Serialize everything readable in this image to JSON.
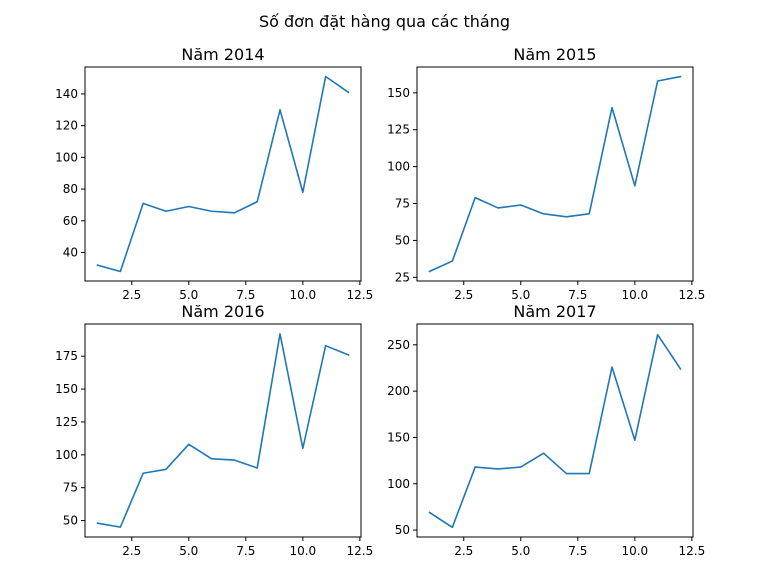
{
  "figure": {
    "suptitle": "Số đơn đặt hàng qua các tháng"
  },
  "style": {
    "line_color": "#1f77b4",
    "axes_color": "#000000",
    "background": "#ffffff"
  },
  "chart_data": [
    {
      "type": "line",
      "title": "Năm 2014",
      "xlabel": "",
      "ylabel": "",
      "grid": false,
      "xlim": [
        0.45,
        12.55
      ],
      "ylim": [
        22,
        157
      ],
      "xticks": [
        2.5,
        5.0,
        7.5,
        10.0,
        12.5
      ],
      "xtick_labels": [
        "2.5",
        "5.0",
        "7.5",
        "10.0",
        "12.5"
      ],
      "yticks": [
        40,
        60,
        80,
        100,
        120,
        140
      ],
      "ytick_labels": [
        "40",
        "60",
        "80",
        "100",
        "120",
        "140"
      ],
      "x": [
        1,
        2,
        3,
        4,
        5,
        6,
        7,
        8,
        9,
        10,
        11,
        12
      ],
      "series": [
        {
          "values": [
            32,
            28,
            71,
            66,
            69,
            66,
            65,
            72,
            130,
            78,
            151,
            141
          ]
        }
      ]
    },
    {
      "type": "line",
      "title": "Năm 2015",
      "xlabel": "",
      "ylabel": "",
      "grid": false,
      "xlim": [
        0.45,
        12.55
      ],
      "ylim": [
        22.5,
        167.5
      ],
      "xticks": [
        2.5,
        5.0,
        7.5,
        10.0,
        12.5
      ],
      "xtick_labels": [
        "2.5",
        "5.0",
        "7.5",
        "10.0",
        "12.5"
      ],
      "yticks": [
        25,
        50,
        75,
        100,
        125,
        150
      ],
      "ytick_labels": [
        "25",
        "50",
        "75",
        "100",
        "125",
        "150"
      ],
      "x": [
        1,
        2,
        3,
        4,
        5,
        6,
        7,
        8,
        9,
        10,
        11,
        12
      ],
      "series": [
        {
          "values": [
            29,
            36,
            79,
            72,
            74,
            68,
            66,
            68,
            140,
            87,
            158,
            161
          ]
        }
      ]
    },
    {
      "type": "line",
      "title": "Năm 2016",
      "xlabel": "",
      "ylabel": "",
      "grid": false,
      "xlim": [
        0.45,
        12.55
      ],
      "ylim": [
        37.5,
        199.5
      ],
      "xticks": [
        2.5,
        5.0,
        7.5,
        10.0,
        12.5
      ],
      "xtick_labels": [
        "2.5",
        "5.0",
        "7.5",
        "10.0",
        "12.5"
      ],
      "yticks": [
        50,
        75,
        100,
        125,
        150,
        175
      ],
      "ytick_labels": [
        "50",
        "75",
        "100",
        "125",
        "150",
        "175"
      ],
      "x": [
        1,
        2,
        3,
        4,
        5,
        6,
        7,
        8,
        9,
        10,
        11,
        12
      ],
      "series": [
        {
          "values": [
            48,
            45,
            86,
            89,
            108,
            97,
            96,
            90,
            192,
            105,
            183,
            176
          ]
        }
      ]
    },
    {
      "type": "line",
      "title": "Năm 2017",
      "xlabel": "",
      "ylabel": "",
      "grid": false,
      "xlim": [
        0.45,
        12.55
      ],
      "ylim": [
        42.5,
        272.5
      ],
      "xticks": [
        2.5,
        5.0,
        7.5,
        10.0,
        12.5
      ],
      "xtick_labels": [
        "2.5",
        "5.0",
        "7.5",
        "10.0",
        "12.5"
      ],
      "yticks": [
        50,
        100,
        150,
        200,
        250
      ],
      "ytick_labels": [
        "50",
        "100",
        "150",
        "200",
        "250"
      ],
      "x": [
        1,
        2,
        3,
        4,
        5,
        6,
        7,
        8,
        9,
        10,
        11,
        12
      ],
      "series": [
        {
          "values": [
            69,
            53,
            118,
            116,
            118,
            133,
            111,
            111,
            226,
            147,
            261,
            224
          ]
        }
      ]
    }
  ]
}
